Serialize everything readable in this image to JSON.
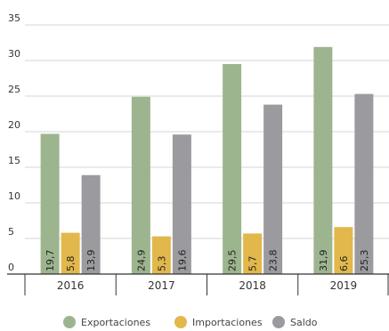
{
  "chart_data": {
    "type": "bar",
    "categories": [
      "2016",
      "2017",
      "2018",
      "2019"
    ],
    "series": [
      {
        "name": "Exportaciones",
        "values": [
          19.7,
          24.9,
          29.5,
          31.9
        ],
        "labels": [
          "19,7",
          "24,9",
          "29,5",
          "31,9"
        ],
        "color": "#9db58f"
      },
      {
        "name": "Importaciones",
        "values": [
          5.8,
          5.3,
          5.7,
          6.6
        ],
        "labels": [
          "5,8",
          "5,3",
          "5,7",
          "6,6"
        ],
        "color": "#e2b84c"
      },
      {
        "name": "Saldo",
        "values": [
          13.9,
          19.6,
          23.8,
          25.3
        ],
        "labels": [
          "13,9",
          "19,6",
          "23,8",
          "25,3"
        ],
        "color": "#9b9b9f"
      }
    ],
    "yticks": [
      0,
      5,
      10,
      15,
      20,
      25,
      30,
      35
    ],
    "ylim": [
      0,
      35
    ],
    "grid": true,
    "legend": "bottom"
  }
}
